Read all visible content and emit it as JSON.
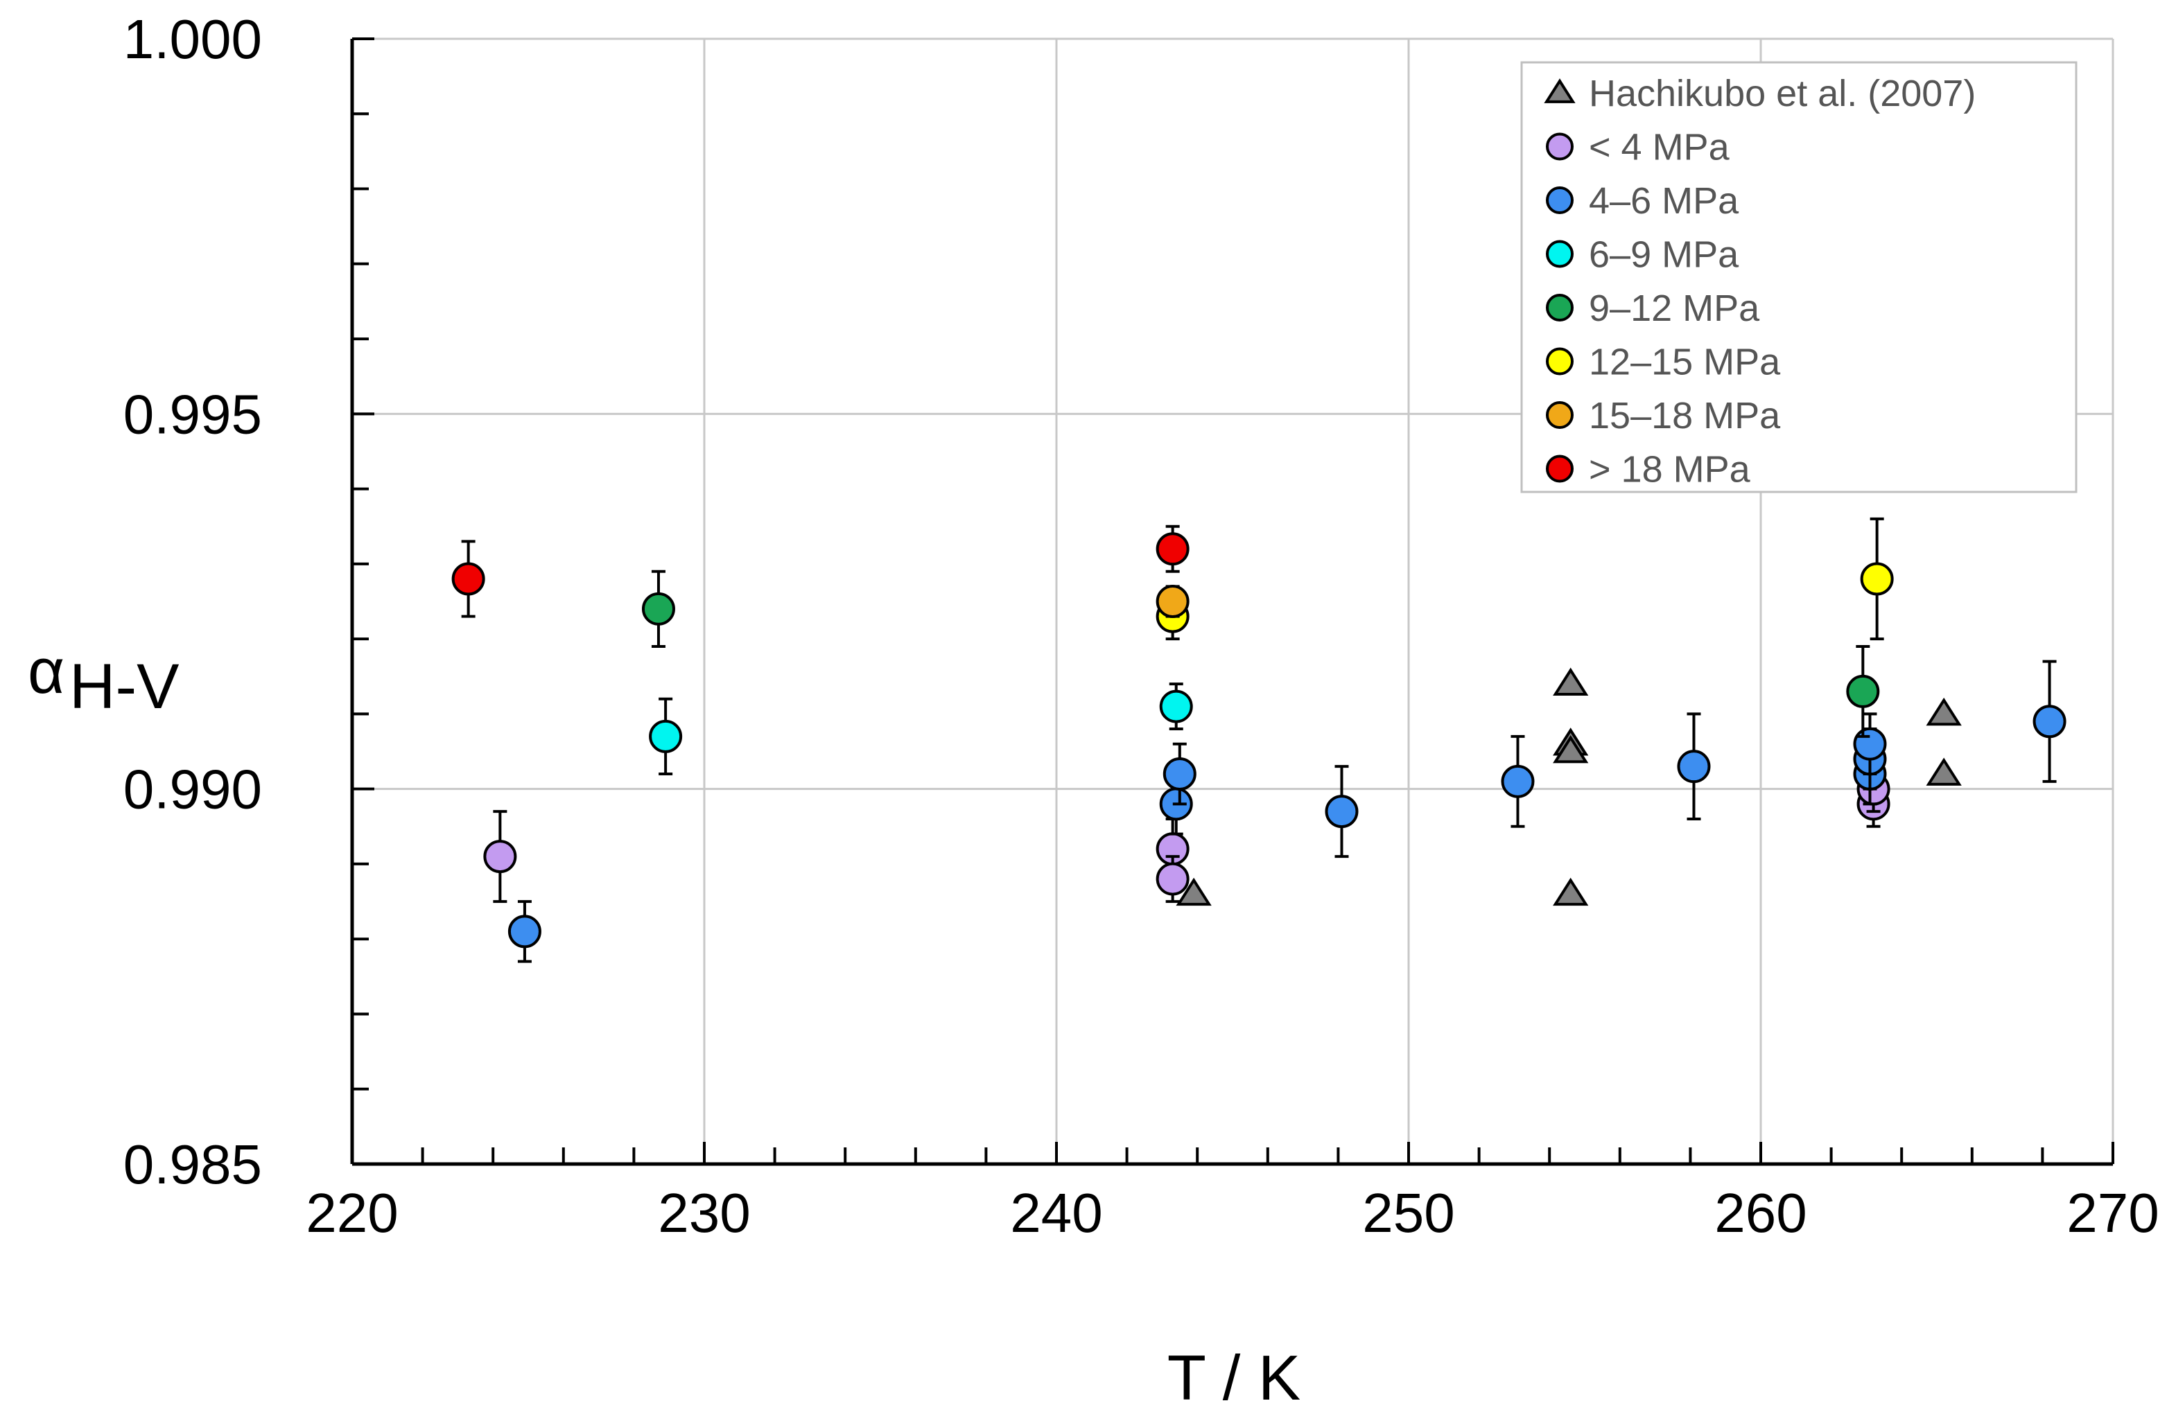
{
  "chart_data": {
    "type": "scatter",
    "title": "",
    "xlabel": "T / K",
    "ylabel_main": "α",
    "ylabel_sub": "H-V",
    "xlim": [
      220,
      270
    ],
    "ylim": [
      0.985,
      1.0
    ],
    "x_ticks": [
      "220",
      "230",
      "240",
      "250",
      "260",
      "270"
    ],
    "y_ticks": [
      "0.985",
      "0.990",
      "0.995",
      "1.000"
    ],
    "grid": true,
    "legend_position": "top-right",
    "series": [
      {
        "name": "Hachikubo et al. (2007)",
        "marker": "triangle",
        "color": "#808080",
        "points": [
          {
            "x": 243.9,
            "y": 0.9886
          },
          {
            "x": 254.6,
            "y": 0.9914
          },
          {
            "x": 254.6,
            "y": 0.9906
          },
          {
            "x": 254.6,
            "y": 0.9905
          },
          {
            "x": 254.6,
            "y": 0.9886
          },
          {
            "x": 265.2,
            "y": 0.991
          },
          {
            "x": 265.2,
            "y": 0.9902
          }
        ]
      },
      {
        "name": "< 4 MPa",
        "marker": "circle",
        "color": "#C39BF0",
        "points": [
          {
            "x": 224.2,
            "y": 0.9891,
            "err": 0.0006
          },
          {
            "x": 243.3,
            "y": 0.9892,
            "err": 0.0004
          },
          {
            "x": 243.3,
            "y": 0.9888,
            "err": 0.0003
          },
          {
            "x": 263.2,
            "y": 0.9898,
            "err": 0.0003
          },
          {
            "x": 263.2,
            "y": 0.99,
            "err": 0.0003
          }
        ]
      },
      {
        "name": "4–6 MPa",
        "marker": "circle",
        "color": "#3D8EF0",
        "points": [
          {
            "x": 224.9,
            "y": 0.9881,
            "err": 0.0004
          },
          {
            "x": 243.4,
            "y": 0.9898,
            "err": 0.0004
          },
          {
            "x": 243.5,
            "y": 0.9902,
            "err": 0.0004
          },
          {
            "x": 248.1,
            "y": 0.9897,
            "err": 0.0006
          },
          {
            "x": 253.1,
            "y": 0.9901,
            "err": 0.0006
          },
          {
            "x": 258.1,
            "y": 0.9903,
            "err": 0.0007
          },
          {
            "x": 263.1,
            "y": 0.9902,
            "err": 0.0004
          },
          {
            "x": 263.1,
            "y": 0.9904,
            "err": 0.0004
          },
          {
            "x": 263.1,
            "y": 0.9906,
            "err": 0.0004
          },
          {
            "x": 268.2,
            "y": 0.9909,
            "err": 0.0008
          }
        ]
      },
      {
        "name": "6–9 MPa",
        "marker": "circle",
        "color": "#00F5F0",
        "points": [
          {
            "x": 228.9,
            "y": 0.9907,
            "err": 0.0005
          },
          {
            "x": 243.4,
            "y": 0.9911,
            "err": 0.0003
          }
        ]
      },
      {
        "name": "9–12 MPa",
        "marker": "circle",
        "color": "#1AA655",
        "points": [
          {
            "x": 228.7,
            "y": 0.9924,
            "err": 0.0005
          },
          {
            "x": 262.9,
            "y": 0.9913,
            "err": 0.0006
          }
        ]
      },
      {
        "name": "12–15 MPa",
        "marker": "circle",
        "color": "#FFFF00",
        "points": [
          {
            "x": 243.3,
            "y": 0.9923,
            "err": 0.0003
          },
          {
            "x": 263.3,
            "y": 0.9928,
            "err": 0.0008
          }
        ]
      },
      {
        "name": "15–18 MPa",
        "marker": "circle",
        "color": "#F0A818",
        "points": [
          {
            "x": 243.3,
            "y": 0.9925,
            "err": 0.0002
          }
        ]
      },
      {
        "name": "> 18 MPa",
        "marker": "circle",
        "color": "#F00000",
        "points": [
          {
            "x": 223.3,
            "y": 0.9928,
            "err": 0.0005
          },
          {
            "x": 243.3,
            "y": 0.9932,
            "err": 0.0003
          }
        ]
      }
    ]
  }
}
